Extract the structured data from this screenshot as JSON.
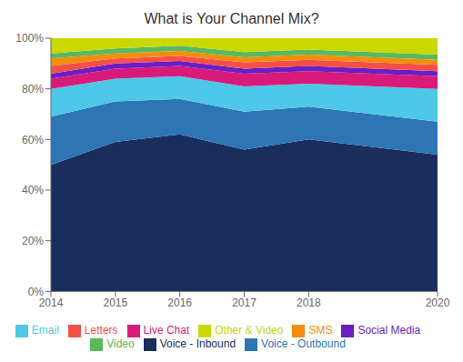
{
  "chart_data": {
    "type": "area",
    "title": "What is Your Channel Mix?",
    "stacked": true,
    "grid": false,
    "legend": "bottom",
    "x": [
      2014,
      2015,
      2016,
      2017,
      2018,
      2020
    ],
    "xlim": [
      2014,
      2020
    ],
    "xticks": [
      2014,
      2015,
      2016,
      2017,
      2018,
      2020
    ],
    "ylim": [
      0,
      100
    ],
    "yticks": [
      {
        "value": 0,
        "label": "0%"
      },
      {
        "value": 20,
        "label": "20%"
      },
      {
        "value": 40,
        "label": "40%"
      },
      {
        "value": 60,
        "label": "60%"
      },
      {
        "value": 80,
        "label": "80%"
      },
      {
        "value": 100,
        "label": "100%"
      }
    ],
    "series": [
      {
        "name": "Voice - Inbound",
        "color": "#1a2e5e",
        "values": [
          50,
          59,
          62,
          56,
          60,
          54
        ]
      },
      {
        "name": "Voice - Outbound",
        "color": "#2e75b6",
        "values": [
          19,
          16,
          14,
          15,
          13,
          13
        ]
      },
      {
        "name": "Email",
        "color": "#4dc8e8",
        "values": [
          11,
          9,
          9,
          10,
          9,
          13
        ]
      },
      {
        "name": "Live Chat",
        "color": "#d81b7a",
        "values": [
          4,
          4,
          4,
          5,
          5,
          5
        ]
      },
      {
        "name": "Social Media",
        "color": "#6a1ec4",
        "values": [
          2,
          2,
          2,
          2,
          2,
          2
        ]
      },
      {
        "name": "Letters",
        "color": "#f4504a",
        "values": [
          3,
          2,
          2,
          2.5,
          2.5,
          2.5
        ]
      },
      {
        "name": "SMS",
        "color": "#f48d0c",
        "values": [
          3,
          2,
          2,
          2,
          2,
          2
        ]
      },
      {
        "name": "Video",
        "color": "#5cb85c",
        "values": [
          2,
          2,
          2,
          2,
          2,
          2
        ]
      },
      {
        "name": "Other & Video",
        "color": "#c8d800",
        "values": [
          6,
          4,
          3,
          5.5,
          4.5,
          6.5
        ]
      }
    ]
  }
}
